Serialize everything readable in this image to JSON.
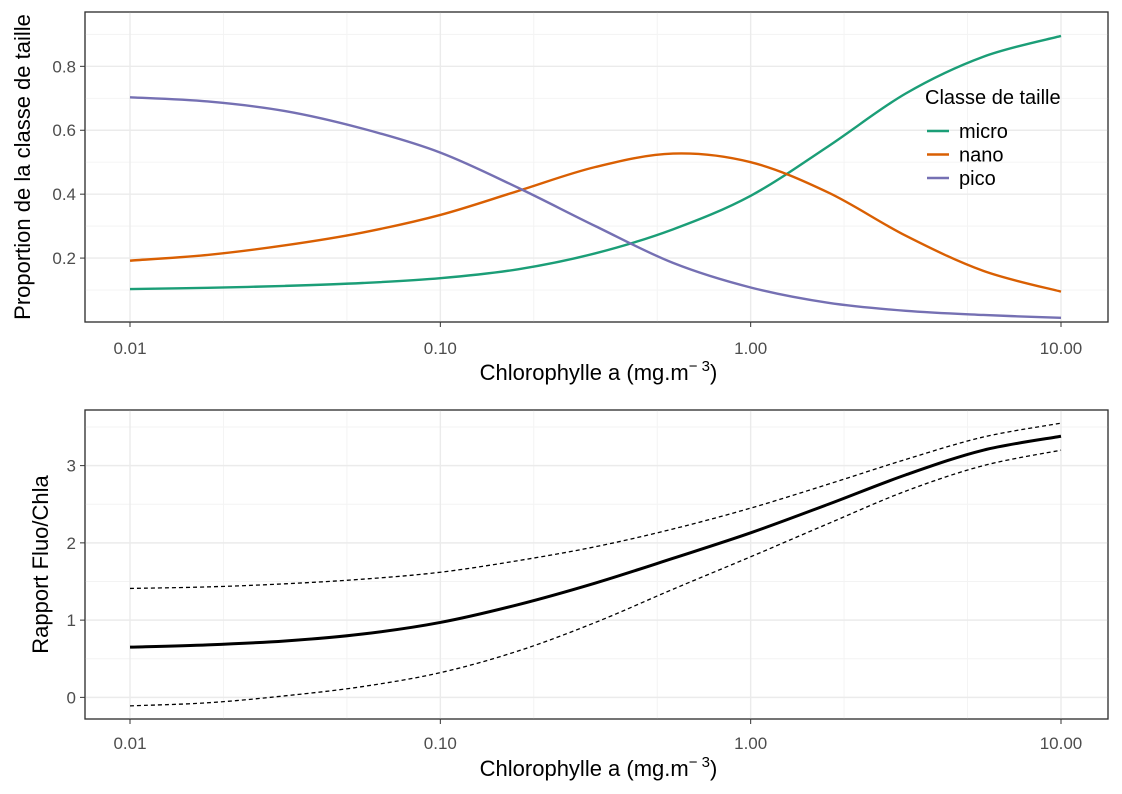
{
  "chart_data": [
    {
      "type": "line",
      "xlabel": "Chlorophylle a (mg.m",
      "xlabel_sup": "− 3",
      "xlabel_close": ")",
      "ylabel": "Proportion de la classe de taille",
      "x_scale": "log10",
      "xlim": [
        0.01,
        10
      ],
      "ylim": [
        0.0,
        0.97
      ],
      "x_ticks": [
        "0.01",
        "0.10",
        "1.00",
        "10.00"
      ],
      "y_ticks": [
        "0.2",
        "0.4",
        "0.6",
        "0.8"
      ],
      "grid": true,
      "legend": {
        "title": "Classe de taille",
        "position": "top-right"
      },
      "series": [
        {
          "name": "micro",
          "color": "#1b9e77",
          "x": [
            0.01,
            0.0178,
            0.0316,
            0.0562,
            0.1,
            0.178,
            0.316,
            0.562,
            1.0,
            1.78,
            3.16,
            5.62,
            10.0
          ],
          "values": [
            0.103,
            0.107,
            0.113,
            0.122,
            0.137,
            0.165,
            0.215,
            0.29,
            0.395,
            0.55,
            0.715,
            0.83,
            0.895
          ]
        },
        {
          "name": "nano",
          "color": "#d95f02",
          "x": [
            0.01,
            0.0178,
            0.0316,
            0.0562,
            0.1,
            0.178,
            0.316,
            0.562,
            1.0,
            1.78,
            3.16,
            5.62,
            10.0
          ],
          "values": [
            0.192,
            0.21,
            0.24,
            0.28,
            0.335,
            0.41,
            0.485,
            0.527,
            0.5,
            0.405,
            0.27,
            0.16,
            0.095
          ]
        },
        {
          "name": "pico",
          "color": "#7570b3",
          "x": [
            0.01,
            0.0178,
            0.0316,
            0.0562,
            0.1,
            0.178,
            0.316,
            0.562,
            1.0,
            1.78,
            3.16,
            5.62,
            10.0
          ],
          "values": [
            0.703,
            0.69,
            0.66,
            0.605,
            0.53,
            0.42,
            0.3,
            0.185,
            0.108,
            0.06,
            0.035,
            0.022,
            0.013
          ]
        }
      ]
    },
    {
      "type": "line",
      "xlabel": "Chlorophylle a (mg.m",
      "xlabel_sup": "− 3",
      "xlabel_close": ")",
      "ylabel": "Rapport Fluo/Chla",
      "x_scale": "log10",
      "xlim": [
        0.01,
        10
      ],
      "ylim": [
        -0.28,
        3.72
      ],
      "x_ticks": [
        "0.01",
        "0.10",
        "1.00",
        "10.00"
      ],
      "y_ticks": [
        "0",
        "1",
        "2",
        "3"
      ],
      "grid": true,
      "series": [
        {
          "style": "solid",
          "color": "#000000",
          "x": [
            0.01,
            0.0178,
            0.0316,
            0.0562,
            0.1,
            0.178,
            0.316,
            0.562,
            1.0,
            1.78,
            3.16,
            5.62,
            10.0
          ],
          "values": [
            0.65,
            0.68,
            0.73,
            0.82,
            0.97,
            1.2,
            1.48,
            1.8,
            2.13,
            2.5,
            2.88,
            3.2,
            3.38
          ]
        },
        {
          "style": "dashed",
          "color": "#000000",
          "x": [
            0.01,
            0.0178,
            0.0316,
            0.0562,
            0.1,
            0.178,
            0.316,
            0.562,
            1.0,
            1.78,
            3.16,
            5.62,
            10.0
          ],
          "values": [
            1.41,
            1.43,
            1.47,
            1.53,
            1.62,
            1.77,
            1.95,
            2.18,
            2.45,
            2.76,
            3.08,
            3.37,
            3.55
          ]
        },
        {
          "style": "dashed",
          "color": "#000000",
          "x": [
            0.01,
            0.0178,
            0.0316,
            0.0562,
            0.1,
            0.178,
            0.316,
            0.562,
            1.0,
            1.78,
            3.16,
            5.62,
            10.0
          ],
          "values": [
            -0.11,
            -0.07,
            0.02,
            0.14,
            0.32,
            0.6,
            0.97,
            1.4,
            1.82,
            2.25,
            2.67,
            3.0,
            3.2
          ]
        }
      ]
    }
  ]
}
